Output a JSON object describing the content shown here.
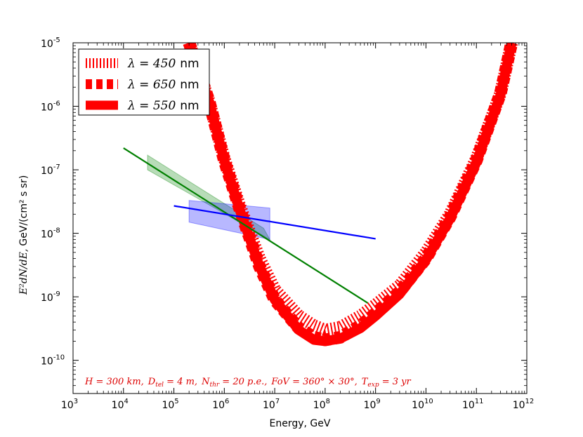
{
  "chart_data": {
    "type": "line",
    "xlabel": "Energy, GeV",
    "ylabel_math": "E²dN/dE,",
    "ylabel_units": "GeV/(cm² s sr)",
    "xscale": "log",
    "yscale": "log",
    "xlim": [
      1000,
      1000000000000
    ],
    "ylim": [
      3e-11,
      1e-05
    ],
    "x_ticks": [
      {
        "base": "10",
        "exp": "3",
        "value": 1000.0
      },
      {
        "base": "10",
        "exp": "4",
        "value": 10000.0
      },
      {
        "base": "10",
        "exp": "5",
        "value": 100000.0
      },
      {
        "base": "10",
        "exp": "6",
        "value": 1000000.0
      },
      {
        "base": "10",
        "exp": "7",
        "value": 10000000.0
      },
      {
        "base": "10",
        "exp": "8",
        "value": 100000000.0
      },
      {
        "base": "10",
        "exp": "9",
        "value": 1000000000.0
      },
      {
        "base": "10",
        "exp": "10",
        "value": 10000000000.0
      },
      {
        "base": "10",
        "exp": "11",
        "value": 100000000000.0
      },
      {
        "base": "10",
        "exp": "12",
        "value": 1000000000000.0
      }
    ],
    "y_ticks": [
      {
        "base": "10",
        "exp": "-10",
        "value": 1e-10
      },
      {
        "base": "10",
        "exp": "-9",
        "value": 1e-09
      },
      {
        "base": "10",
        "exp": "-8",
        "value": 1e-08
      },
      {
        "base": "10",
        "exp": "-7",
        "value": 1e-07
      },
      {
        "base": "10",
        "exp": "-6",
        "value": 1e-06
      },
      {
        "base": "10",
        "exp": "-5",
        "value": 1e-05
      }
    ],
    "legend_position": "top-left",
    "series": [
      {
        "name": "λ = 450 nm",
        "legend_math": "λ = 450",
        "legend_unit": "nm",
        "style": "hatched",
        "color": "#ff0000",
        "x": [
          200000,
          500000,
          1000000,
          2000000,
          5000000,
          10000000,
          30000000,
          60000000,
          100000000,
          200000000,
          500000000,
          1000000000,
          3000000000,
          10000000000,
          30000000000,
          100000000000,
          300000000000,
          500000000000
        ],
        "y": [
          1e-05,
          1.2e-06,
          1.5e-07,
          2.8e-08,
          4e-09,
          1.3e-09,
          5e-10,
          3.5e-10,
          3e-10,
          3.3e-10,
          5e-10,
          7.5e-10,
          1.5e-09,
          5e-09,
          2e-08,
          1.5e-07,
          1.6e-06,
          1e-05
        ]
      },
      {
        "name": "λ = 650 nm",
        "legend_math": "λ = 650",
        "legend_unit": "nm",
        "style": "dashed",
        "color": "#ff0000",
        "x": [
          200000,
          500000,
          1000000,
          2000000,
          5000000,
          10000000,
          30000000,
          60000000,
          100000000,
          200000000,
          500000000,
          1000000000,
          3000000000,
          10000000000,
          30000000000,
          100000000000,
          300000000000,
          500000000000
        ],
        "y": [
          1e-05,
          1.2e-06,
          1.4e-07,
          2.5e-08,
          3e-09,
          9e-10,
          3.2e-10,
          2.3e-10,
          2.1e-10,
          2.3e-10,
          3.5e-10,
          5.5e-10,
          1.2e-09,
          4e-09,
          1.8e-08,
          1.4e-07,
          1.6e-06,
          1e-05
        ]
      },
      {
        "name": "λ = 550 nm",
        "legend_math": "λ = 550",
        "legend_unit": "nm",
        "style": "solid-thick",
        "color": "#ff0000",
        "x": [
          200000,
          500000,
          1000000,
          2000000,
          5000000,
          10000000,
          30000000,
          60000000,
          100000000,
          200000000,
          500000000,
          1000000000,
          3000000000,
          10000000000,
          30000000000,
          100000000000,
          300000000000,
          500000000000
        ],
        "y": [
          1e-05,
          1.2e-06,
          1.4e-07,
          2.4e-08,
          3e-09,
          9e-10,
          3e-10,
          2.1e-10,
          2e-10,
          2.2e-10,
          3.2e-10,
          5e-10,
          1.1e-09,
          3.8e-09,
          1.7e-08,
          1.3e-07,
          1.5e-06,
          1e-05
        ]
      },
      {
        "name": "green power law",
        "style": "line",
        "color": "#008000",
        "x": [
          10000,
          700000000
        ],
        "y": [
          2.2e-07,
          8e-10
        ]
      },
      {
        "name": "blue power law",
        "style": "line",
        "color": "#0000ff",
        "x": [
          100000,
          1000000000
        ],
        "y": [
          2.7e-08,
          8.2e-09
        ]
      }
    ],
    "bands": [
      {
        "name": "green band",
        "color": "#008000",
        "polygon_x": [
          30000,
          6000000,
          8000000,
          30000
        ],
        "polygon_y": [
          1.7e-07,
          1.2e-08,
          8e-09,
          1e-07
        ]
      },
      {
        "name": "blue band",
        "color": "#0000ff",
        "polygon_x": [
          200000,
          8000000,
          8000000,
          200000
        ],
        "polygon_y": [
          3.3e-08,
          2.5e-08,
          8e-09,
          1.5e-08
        ]
      }
    ],
    "annotation": "H = 300 km,  D_tel = 4 m,  N_thr = 20 p.e.,  FoV = 360° × 30°,  T_exp = 3 yr",
    "annotation_parts": {
      "h": "H = 300 km,",
      "d": "D",
      "d_sub": "tel",
      "d_val": " = 4 m,",
      "n": "N",
      "n_sub": "thr",
      "n_val": " = 20 p.e.,",
      "fov": "FoV = 360° × 30°,",
      "t": "T",
      "t_sub": "exp",
      "t_val": " = 3 yr"
    }
  }
}
